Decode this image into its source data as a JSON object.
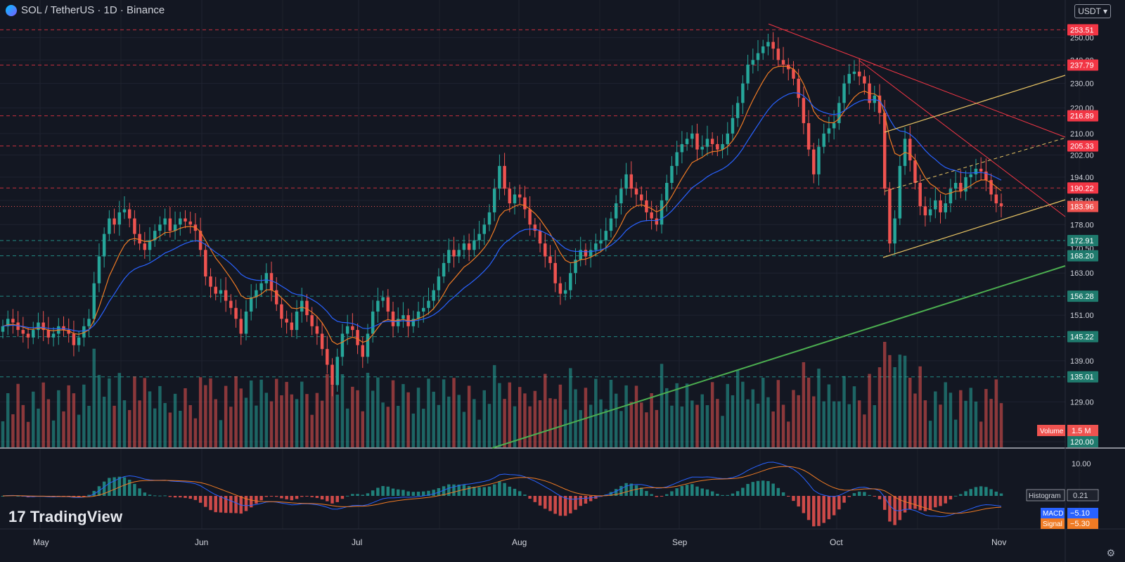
{
  "header": {
    "title": "SOL / TetherUS · 1D · Binance",
    "currency_button": "USDT ▾"
  },
  "branding": {
    "logo_text": "TradingView",
    "logo_mark": "17"
  },
  "icons": {
    "coin": "sol-coin-icon",
    "settings": "gear-icon"
  },
  "colors": {
    "background": "#131722",
    "up": "#26a69a",
    "down": "#ef5350",
    "ema_fast": "#f07b24",
    "ema_slow": "#2962ff",
    "support_line": "#e8c463",
    "long_trend": "#4caf50",
    "resistance": "#f23645"
  },
  "chart_data": {
    "type": "candlestick",
    "symbol": "SOL / TetherUS",
    "interval": "1D",
    "exchange": "Binance",
    "x_labels": [
      "May",
      "Jun",
      "Jul",
      "Aug",
      "Sep",
      "Oct",
      "Nov"
    ],
    "y_ticks": [
      120.0,
      129.0,
      139.0,
      151.0,
      163.0,
      170.5,
      178.0,
      186.0,
      194.0,
      202.0,
      210.0,
      220.0,
      230.0,
      240.0,
      250.0
    ],
    "ylim": [
      120,
      253
    ],
    "scale": "log",
    "price_levels": [
      {
        "value": 253.51,
        "label": "253.51"
      },
      {
        "value": 237.79,
        "label": "237.79"
      },
      {
        "value": 216.89,
        "label": "216.89"
      },
      {
        "value": 205.33,
        "label": "205.33"
      },
      {
        "value": 190.22,
        "label": "190.22"
      },
      {
        "value": 172.91,
        "label": "172.91"
      },
      {
        "value": 168.2,
        "label": "168.20"
      },
      {
        "value": 156.28,
        "label": "156.28"
      },
      {
        "value": 145.22,
        "label": "145.22"
      },
      {
        "value": 135.01,
        "label": "135.01"
      }
    ],
    "last_price": {
      "value": 183.96,
      "label": "183.96"
    },
    "volume_label": {
      "name": "Volume",
      "value": "1.5 M"
    },
    "macd_panel": {
      "tick": "10.00",
      "histogram": {
        "name": "Histogram",
        "value": "0.21"
      },
      "macd": {
        "name": "MACD",
        "value": "−5.10"
      },
      "signal": {
        "name": "Signal",
        "value": "−5.30"
      }
    },
    "closes": [
      148,
      150,
      149,
      147,
      146,
      145,
      147,
      149,
      147,
      145,
      146,
      148,
      147,
      146,
      143,
      145,
      148,
      150,
      160,
      168,
      175,
      180,
      178,
      182,
      183,
      180,
      175,
      172,
      170,
      173,
      176,
      178,
      180,
      176,
      178,
      180,
      179,
      178,
      176,
      170,
      162,
      159,
      157,
      158,
      155,
      153,
      150,
      146,
      152,
      156,
      158,
      160,
      163,
      158,
      154,
      150,
      149,
      147,
      152,
      155,
      151,
      148,
      146,
      142,
      138,
      133,
      140,
      146,
      148,
      147,
      143,
      140,
      146,
      152,
      155,
      156,
      152,
      148,
      150,
      151,
      148,
      150,
      152,
      153,
      155,
      158,
      162,
      166,
      170,
      168,
      170,
      172,
      170,
      173,
      175,
      178,
      182,
      190,
      198,
      190,
      185,
      188,
      187,
      183,
      178,
      176,
      172,
      168,
      166,
      160,
      157,
      158,
      163,
      167,
      170,
      168,
      170,
      172,
      173,
      176,
      180,
      185,
      190,
      195,
      190,
      188,
      186,
      182,
      180,
      178,
      186,
      192,
      198,
      203,
      206,
      208,
      210,
      204,
      205,
      208,
      206,
      204,
      206,
      210,
      216,
      222,
      230,
      238,
      240,
      243,
      246,
      248,
      245,
      240,
      238,
      236,
      232,
      224,
      214,
      204,
      195,
      205,
      210,
      212,
      214,
      222,
      230,
      234,
      235,
      233,
      230,
      222,
      225,
      218,
      190,
      172,
      180,
      198,
      208,
      200,
      192,
      184,
      181,
      183,
      186,
      182,
      185,
      190,
      192,
      189,
      194,
      195,
      197,
      196,
      193,
      188,
      185,
      184
    ]
  }
}
